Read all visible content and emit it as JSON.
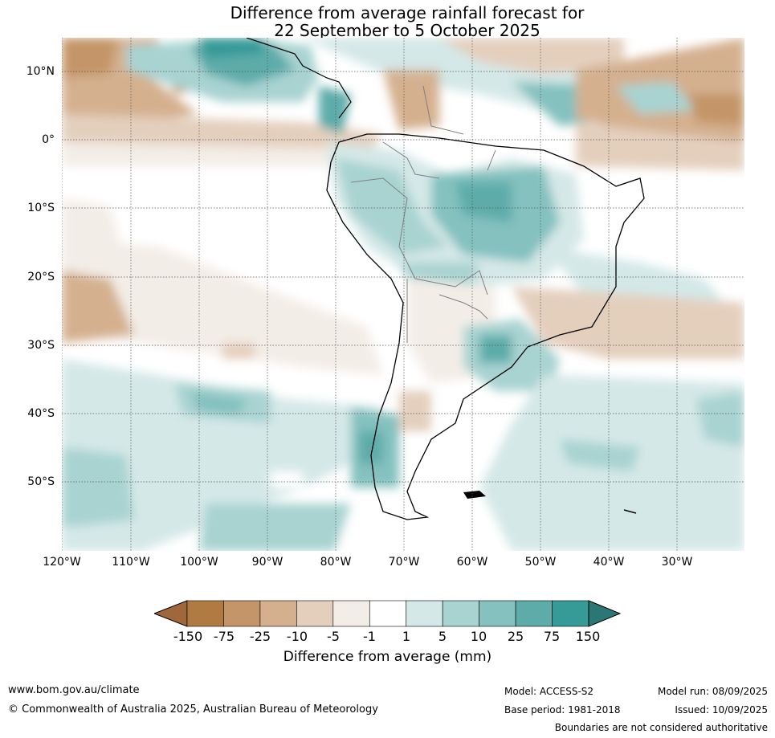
{
  "title_line1": "Difference from average rainfall forecast for",
  "title_line2": "22 September to 5 October 2025",
  "lat_labels": [
    "10°N",
    "0°",
    "10°S",
    "20°S",
    "30°S",
    "40°S",
    "50°S"
  ],
  "lon_labels": [
    "120°W",
    "110°W",
    "100°W",
    "90°W",
    "80°W",
    "70°W",
    "60°W",
    "50°W",
    "40°W",
    "30°W"
  ],
  "legend": {
    "title": "Difference from average (mm)",
    "labels": [
      "-150",
      "-75",
      "-25",
      "-10",
      "-5",
      "-1",
      "1",
      "5",
      "10",
      "25",
      "75",
      "150"
    ],
    "colors": [
      "#a0673a",
      "#b07a43",
      "#c49568",
      "#d4b08f",
      "#e4cfbd",
      "#f3ede7",
      "#ffffff",
      "#d4e8e7",
      "#a8d3d1",
      "#84c1bf",
      "#5dacaa",
      "#369a97",
      "#2b7775"
    ]
  },
  "footer": {
    "url": "www.bom.gov.au/climate",
    "copyright": "© Commonwealth of Australia 2025, Australian Bureau of Meteorology",
    "model": "Model: ACCESS-S2",
    "base_period": "Base period: 1981-2018",
    "model_run": "Model run: 08/09/2025",
    "issued": "Issued: 10/09/2025",
    "disclaimer": "Boundaries are not considered authoritative"
  }
}
